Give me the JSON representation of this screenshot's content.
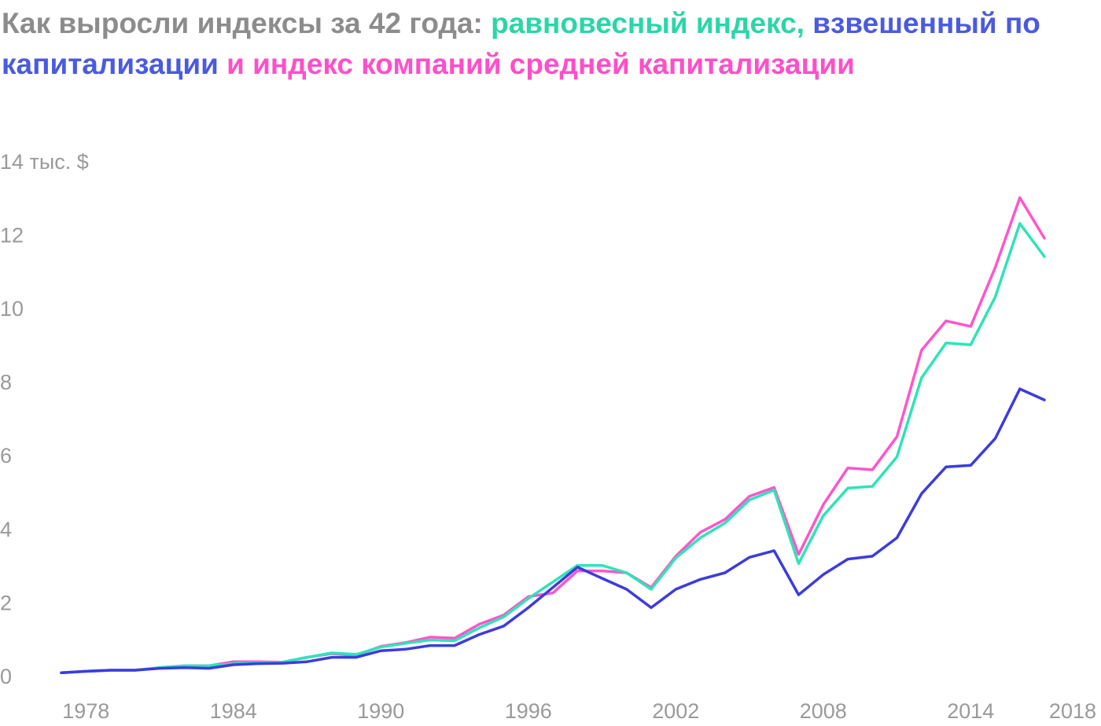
{
  "title": {
    "part1": "Как выросли индексы за 42 года: ",
    "part2": "равновесный индекс, ",
    "part3": "взвешенный по капитализации ",
    "part4": "и индекс компаний средней капитализации"
  },
  "colors": {
    "title_gray": "#8c8c8c",
    "equal": "#2fe3b8",
    "cap": "#3c3cdc",
    "mid": "#ff55cc",
    "cap_title": "#4a5be0",
    "equal_title": "#2ad6a8",
    "mid_title": "#ff4fc8",
    "tick": "#9a9a9a"
  },
  "chart_data": {
    "type": "line",
    "ylabel": "тыс. $",
    "ytick_labels": [
      "0",
      "2",
      "4",
      "6",
      "8",
      "10",
      "12",
      "14 тыс. $"
    ],
    "yticks": [
      0,
      2,
      4,
      6,
      8,
      10,
      12,
      14
    ],
    "xticks": [
      1978,
      1984,
      1990,
      1996,
      2002,
      2008,
      2014,
      2018
    ],
    "xlim": [
      1976,
      2018
    ],
    "ylim": [
      0,
      14
    ],
    "grid": false,
    "x": [
      1977,
      1978,
      1979,
      1980,
      1981,
      1982,
      1983,
      1984,
      1985,
      1986,
      1987,
      1988,
      1989,
      1990,
      1991,
      1992,
      1993,
      1994,
      1995,
      1996,
      1997,
      1998,
      1999,
      2000,
      2001,
      2002,
      2003,
      2004,
      2005,
      2006,
      2007,
      2008,
      2009,
      2010,
      2011,
      2012,
      2013,
      2014,
      2015,
      2016,
      2017,
      2018
    ],
    "series": [
      {
        "key": "mid",
        "values": [
          0.08,
          0.12,
          0.15,
          0.15,
          0.22,
          0.27,
          0.27,
          0.38,
          0.38,
          0.37,
          0.5,
          0.6,
          0.55,
          0.8,
          0.9,
          1.05,
          1.02,
          1.4,
          1.65,
          2.15,
          2.25,
          2.85,
          2.85,
          2.8,
          2.4,
          3.25,
          3.9,
          4.25,
          4.88,
          5.12,
          3.3,
          4.65,
          5.65,
          5.6,
          6.5,
          8.85,
          9.65,
          9.5,
          11.1,
          13.0,
          11.9,
          null
        ]
      },
      {
        "key": "equal",
        "values": [
          0.08,
          0.12,
          0.15,
          0.15,
          0.22,
          0.27,
          0.27,
          0.33,
          0.35,
          0.37,
          0.5,
          0.62,
          0.58,
          0.78,
          0.88,
          0.97,
          0.95,
          1.3,
          1.6,
          2.1,
          2.55,
          3.0,
          3.0,
          2.8,
          2.35,
          3.2,
          3.75,
          4.15,
          4.78,
          5.05,
          3.05,
          4.35,
          5.1,
          5.15,
          5.95,
          8.1,
          9.05,
          9.0,
          10.3,
          12.3,
          11.4,
          null
        ]
      },
      {
        "key": "cap",
        "values": [
          0.08,
          0.12,
          0.15,
          0.15,
          0.2,
          0.22,
          0.2,
          0.3,
          0.33,
          0.34,
          0.38,
          0.5,
          0.5,
          0.68,
          0.72,
          0.82,
          0.82,
          1.12,
          1.35,
          1.85,
          2.4,
          2.95,
          2.65,
          2.35,
          1.85,
          2.35,
          2.62,
          2.8,
          3.22,
          3.4,
          2.2,
          2.75,
          3.17,
          3.25,
          3.75,
          4.95,
          5.68,
          5.72,
          6.45,
          7.8,
          7.5,
          null
        ]
      }
    ]
  }
}
